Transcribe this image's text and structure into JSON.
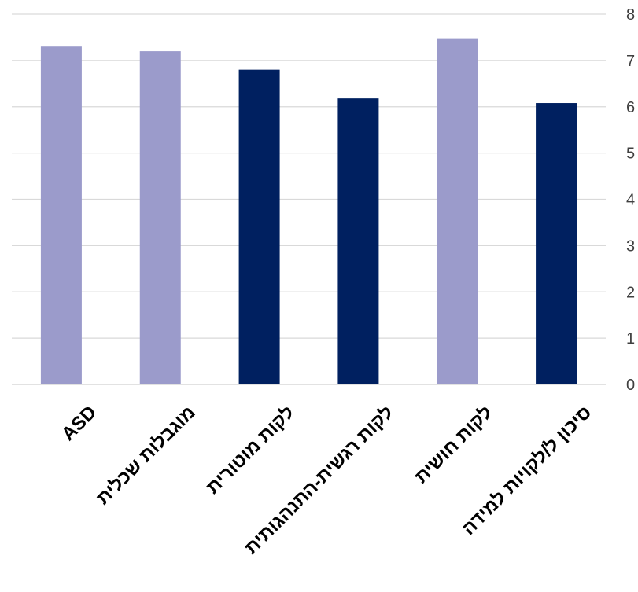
{
  "chart_data": {
    "type": "bar",
    "categories": [
      "ASD",
      "מוגבלות שכלית",
      "לקות מוטורית",
      "לקות רגשית-התנהגותית",
      "לקות חושית",
      "סיכון ל/לקויות למידה"
    ],
    "values": [
      7.3,
      7.2,
      6.8,
      6.18,
      7.48,
      6.08
    ],
    "ylim": [
      0,
      8
    ],
    "yticks": [
      0,
      1,
      2,
      3,
      4,
      5,
      6,
      7,
      8
    ],
    "y_axis_position": "right",
    "grid": true,
    "legend": "none",
    "bar_colors": [
      "#9b9bcb",
      "#9b9bcb",
      "#002060",
      "#002060",
      "#9b9bcb",
      "#002060"
    ]
  }
}
